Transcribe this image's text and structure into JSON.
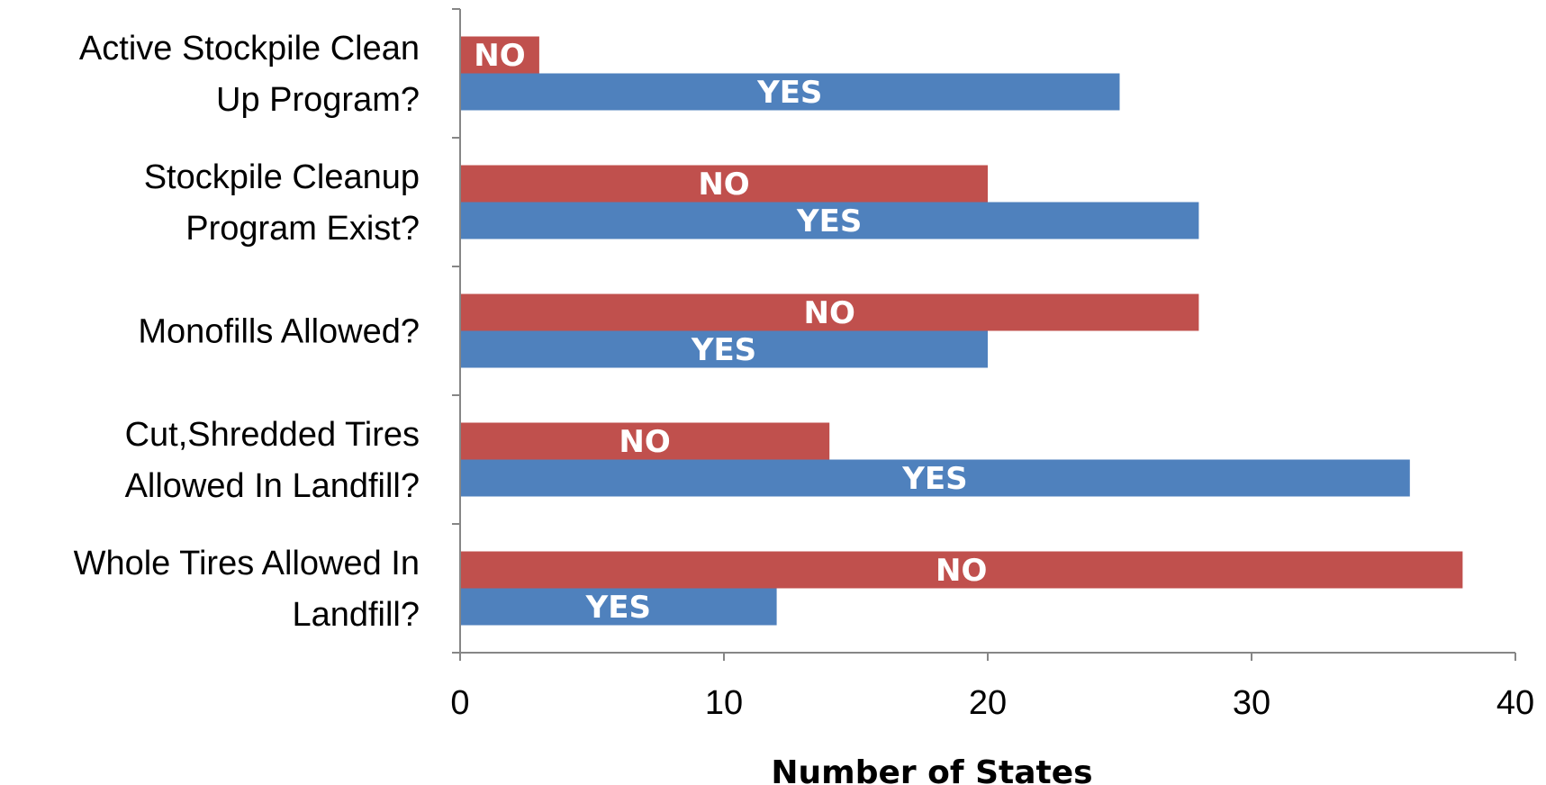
{
  "chart_data": {
    "type": "bar",
    "orientation": "horizontal",
    "categories": [
      [
        "Active Stockpile Clean",
        "Up Program?"
      ],
      [
        "Stockpile Cleanup",
        "Program Exist?"
      ],
      [
        "Monofills Allowed?"
      ],
      [
        "Cut,Shredded Tires",
        "Allowed In Landfill?"
      ],
      [
        "Whole Tires Allowed In",
        "Landfill?"
      ]
    ],
    "series": [
      {
        "name": "NO",
        "color": "#c0504d",
        "values": [
          3,
          20,
          28,
          14,
          38
        ]
      },
      {
        "name": "YES",
        "color": "#4f81bd",
        "values": [
          25,
          28,
          20,
          36,
          12
        ]
      }
    ],
    "xlabel": "Number of States",
    "ylabel": "",
    "xlim": [
      0,
      40
    ],
    "xticks": [
      0,
      10,
      20,
      30,
      40
    ],
    "grid": false,
    "legend": "none"
  }
}
